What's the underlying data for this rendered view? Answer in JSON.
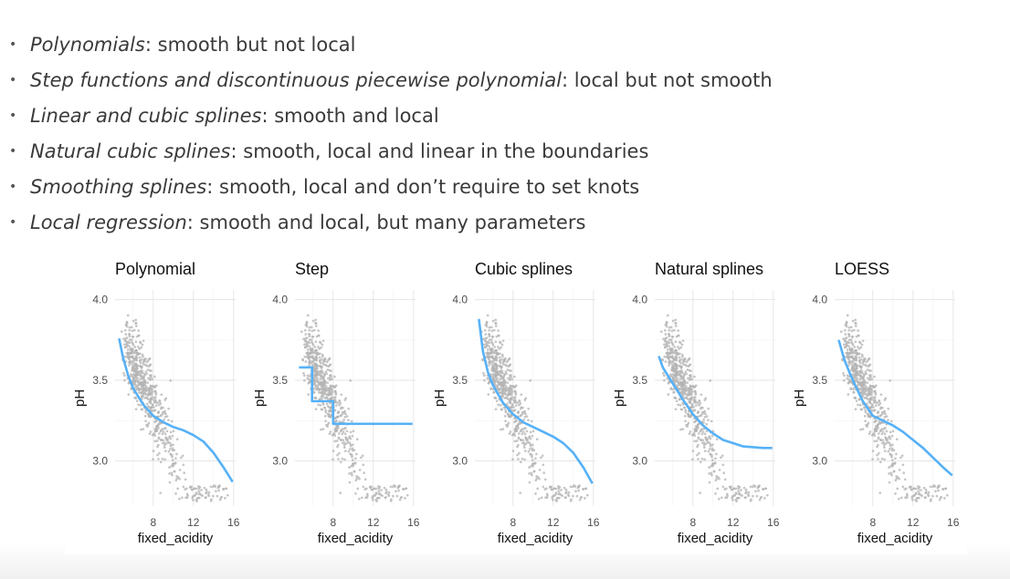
{
  "bullets": [
    {
      "term": "Polynomials",
      "text": ": smooth but not local"
    },
    {
      "term": "Step functions and discontinuous piecewise polynomial",
      "text": ": local but not smooth"
    },
    {
      "term": "Linear and cubic splines",
      "text": ": smooth and local"
    },
    {
      "term": "Natural cubic splines",
      "text": ": smooth, local and linear in the boundaries"
    },
    {
      "term": "Smoothing splines",
      "text": ": smooth, local and don’t require to set knots"
    },
    {
      "term": "Local regression",
      "text": ": smooth and local, but many parameters"
    }
  ],
  "colors": {
    "points": "#b3b3b3",
    "fit": "#56b1f7"
  },
  "chart_data": [
    {
      "type": "scatter",
      "title": "Polynomial",
      "xlabel": "fixed_acidity",
      "ylabel": "pH",
      "xlim": [
        4.2,
        16.2
      ],
      "ylim": [
        2.72,
        4.06
      ],
      "xticks": [
        8,
        12,
        16
      ],
      "yticks": [
        "3.0",
        "3.5",
        "4.0"
      ],
      "grid": true,
      "fit": [
        [
          4.6,
          3.76
        ],
        [
          5,
          3.64
        ],
        [
          5.5,
          3.53
        ],
        [
          6,
          3.45
        ],
        [
          7,
          3.35
        ],
        [
          8,
          3.28
        ],
        [
          9,
          3.24
        ],
        [
          10,
          3.21
        ],
        [
          11,
          3.19
        ],
        [
          12,
          3.16
        ],
        [
          13,
          3.12
        ],
        [
          14,
          3.05
        ],
        [
          15,
          2.96
        ],
        [
          15.9,
          2.87
        ]
      ]
    },
    {
      "type": "scatter",
      "title": "Step",
      "xlabel": "fixed_acidity",
      "ylabel": "pH",
      "xlim": [
        4.2,
        16.2
      ],
      "ylim": [
        2.72,
        4.06
      ],
      "xticks": [
        8,
        12,
        16
      ],
      "yticks": [
        "3.0",
        "3.5",
        "4.0"
      ],
      "grid": true,
      "fit": [
        [
          4.6,
          3.58
        ],
        [
          5.9,
          3.58
        ],
        [
          5.9,
          3.37
        ],
        [
          8,
          3.37
        ],
        [
          8,
          3.23
        ],
        [
          15.9,
          3.23
        ]
      ]
    },
    {
      "type": "scatter",
      "title": "Cubic splines",
      "xlabel": "fixed_acidity",
      "ylabel": "pH",
      "xlim": [
        4.2,
        16.2
      ],
      "ylim": [
        2.72,
        4.06
      ],
      "xticks": [
        8,
        12,
        16
      ],
      "yticks": [
        "3.0",
        "3.5",
        "4.0"
      ],
      "grid": true,
      "fit": [
        [
          4.6,
          3.88
        ],
        [
          5,
          3.68
        ],
        [
          5.5,
          3.55
        ],
        [
          6,
          3.47
        ],
        [
          7,
          3.36
        ],
        [
          8,
          3.29
        ],
        [
          9,
          3.24
        ],
        [
          10,
          3.21
        ],
        [
          11,
          3.18
        ],
        [
          12,
          3.15
        ],
        [
          13,
          3.11
        ],
        [
          14,
          3.05
        ],
        [
          15,
          2.96
        ],
        [
          15.9,
          2.86
        ]
      ]
    },
    {
      "type": "scatter",
      "title": "Natural splines",
      "xlabel": "fixed_acidity",
      "ylabel": "pH",
      "xlim": [
        4.2,
        16.2
      ],
      "ylim": [
        2.72,
        4.06
      ],
      "xticks": [
        8,
        12,
        16
      ],
      "yticks": [
        "3.0",
        "3.5",
        "4.0"
      ],
      "grid": true,
      "fit": [
        [
          4.6,
          3.65
        ],
        [
          5,
          3.58
        ],
        [
          6,
          3.48
        ],
        [
          7,
          3.38
        ],
        [
          8,
          3.29
        ],
        [
          9,
          3.22
        ],
        [
          10,
          3.17
        ],
        [
          11,
          3.13
        ],
        [
          12,
          3.11
        ],
        [
          13,
          3.09
        ],
        [
          14,
          3.085
        ],
        [
          15,
          3.08
        ],
        [
          15.9,
          3.08
        ]
      ]
    },
    {
      "type": "scatter",
      "title": "LOESS",
      "xlabel": "fixed_acidity",
      "ylabel": "pH",
      "xlim": [
        4.2,
        16.2
      ],
      "ylim": [
        2.72,
        4.06
      ],
      "xticks": [
        8,
        12,
        16
      ],
      "yticks": [
        "3.0",
        "3.5",
        "4.0"
      ],
      "grid": true,
      "fit": [
        [
          4.6,
          3.75
        ],
        [
          5.2,
          3.62
        ],
        [
          6,
          3.5
        ],
        [
          7,
          3.37
        ],
        [
          8,
          3.28
        ],
        [
          9,
          3.25
        ],
        [
          10,
          3.22
        ],
        [
          11,
          3.18
        ],
        [
          12,
          3.13
        ],
        [
          13,
          3.08
        ],
        [
          14,
          3.02
        ],
        [
          15,
          2.96
        ],
        [
          15.9,
          2.91
        ]
      ]
    }
  ]
}
